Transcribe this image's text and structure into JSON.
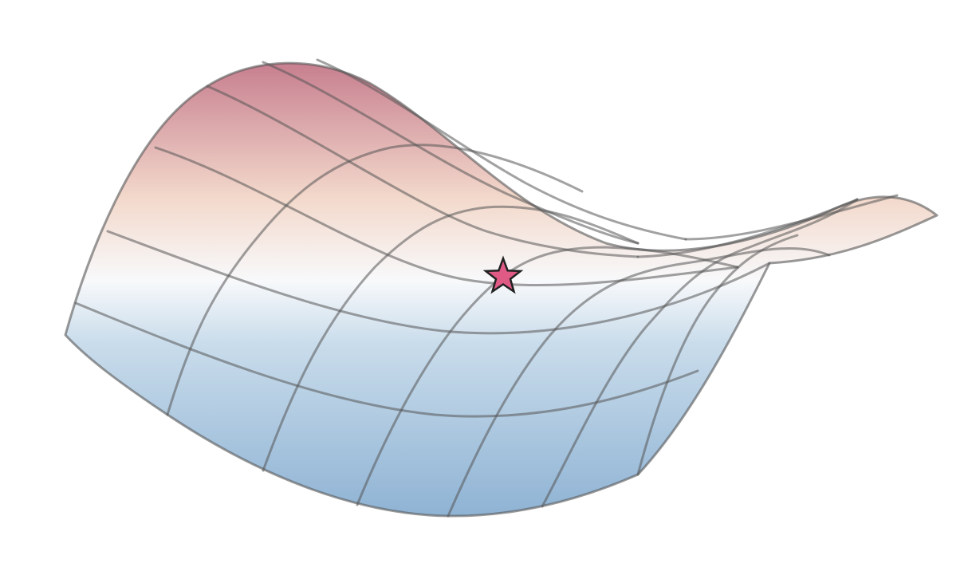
{
  "figure": {
    "kind": "saddle surface",
    "marker_icon": "star-icon"
  },
  "colors": {
    "high": "#c77f8f",
    "mid_high": "#f3d9cc",
    "neutral": "#f8f9fb",
    "mid_low": "#c9dceb",
    "low": "#8fb3d4",
    "grid": "#555555",
    "marker_fill": "#e05a86",
    "marker_stroke": "#222222"
  }
}
